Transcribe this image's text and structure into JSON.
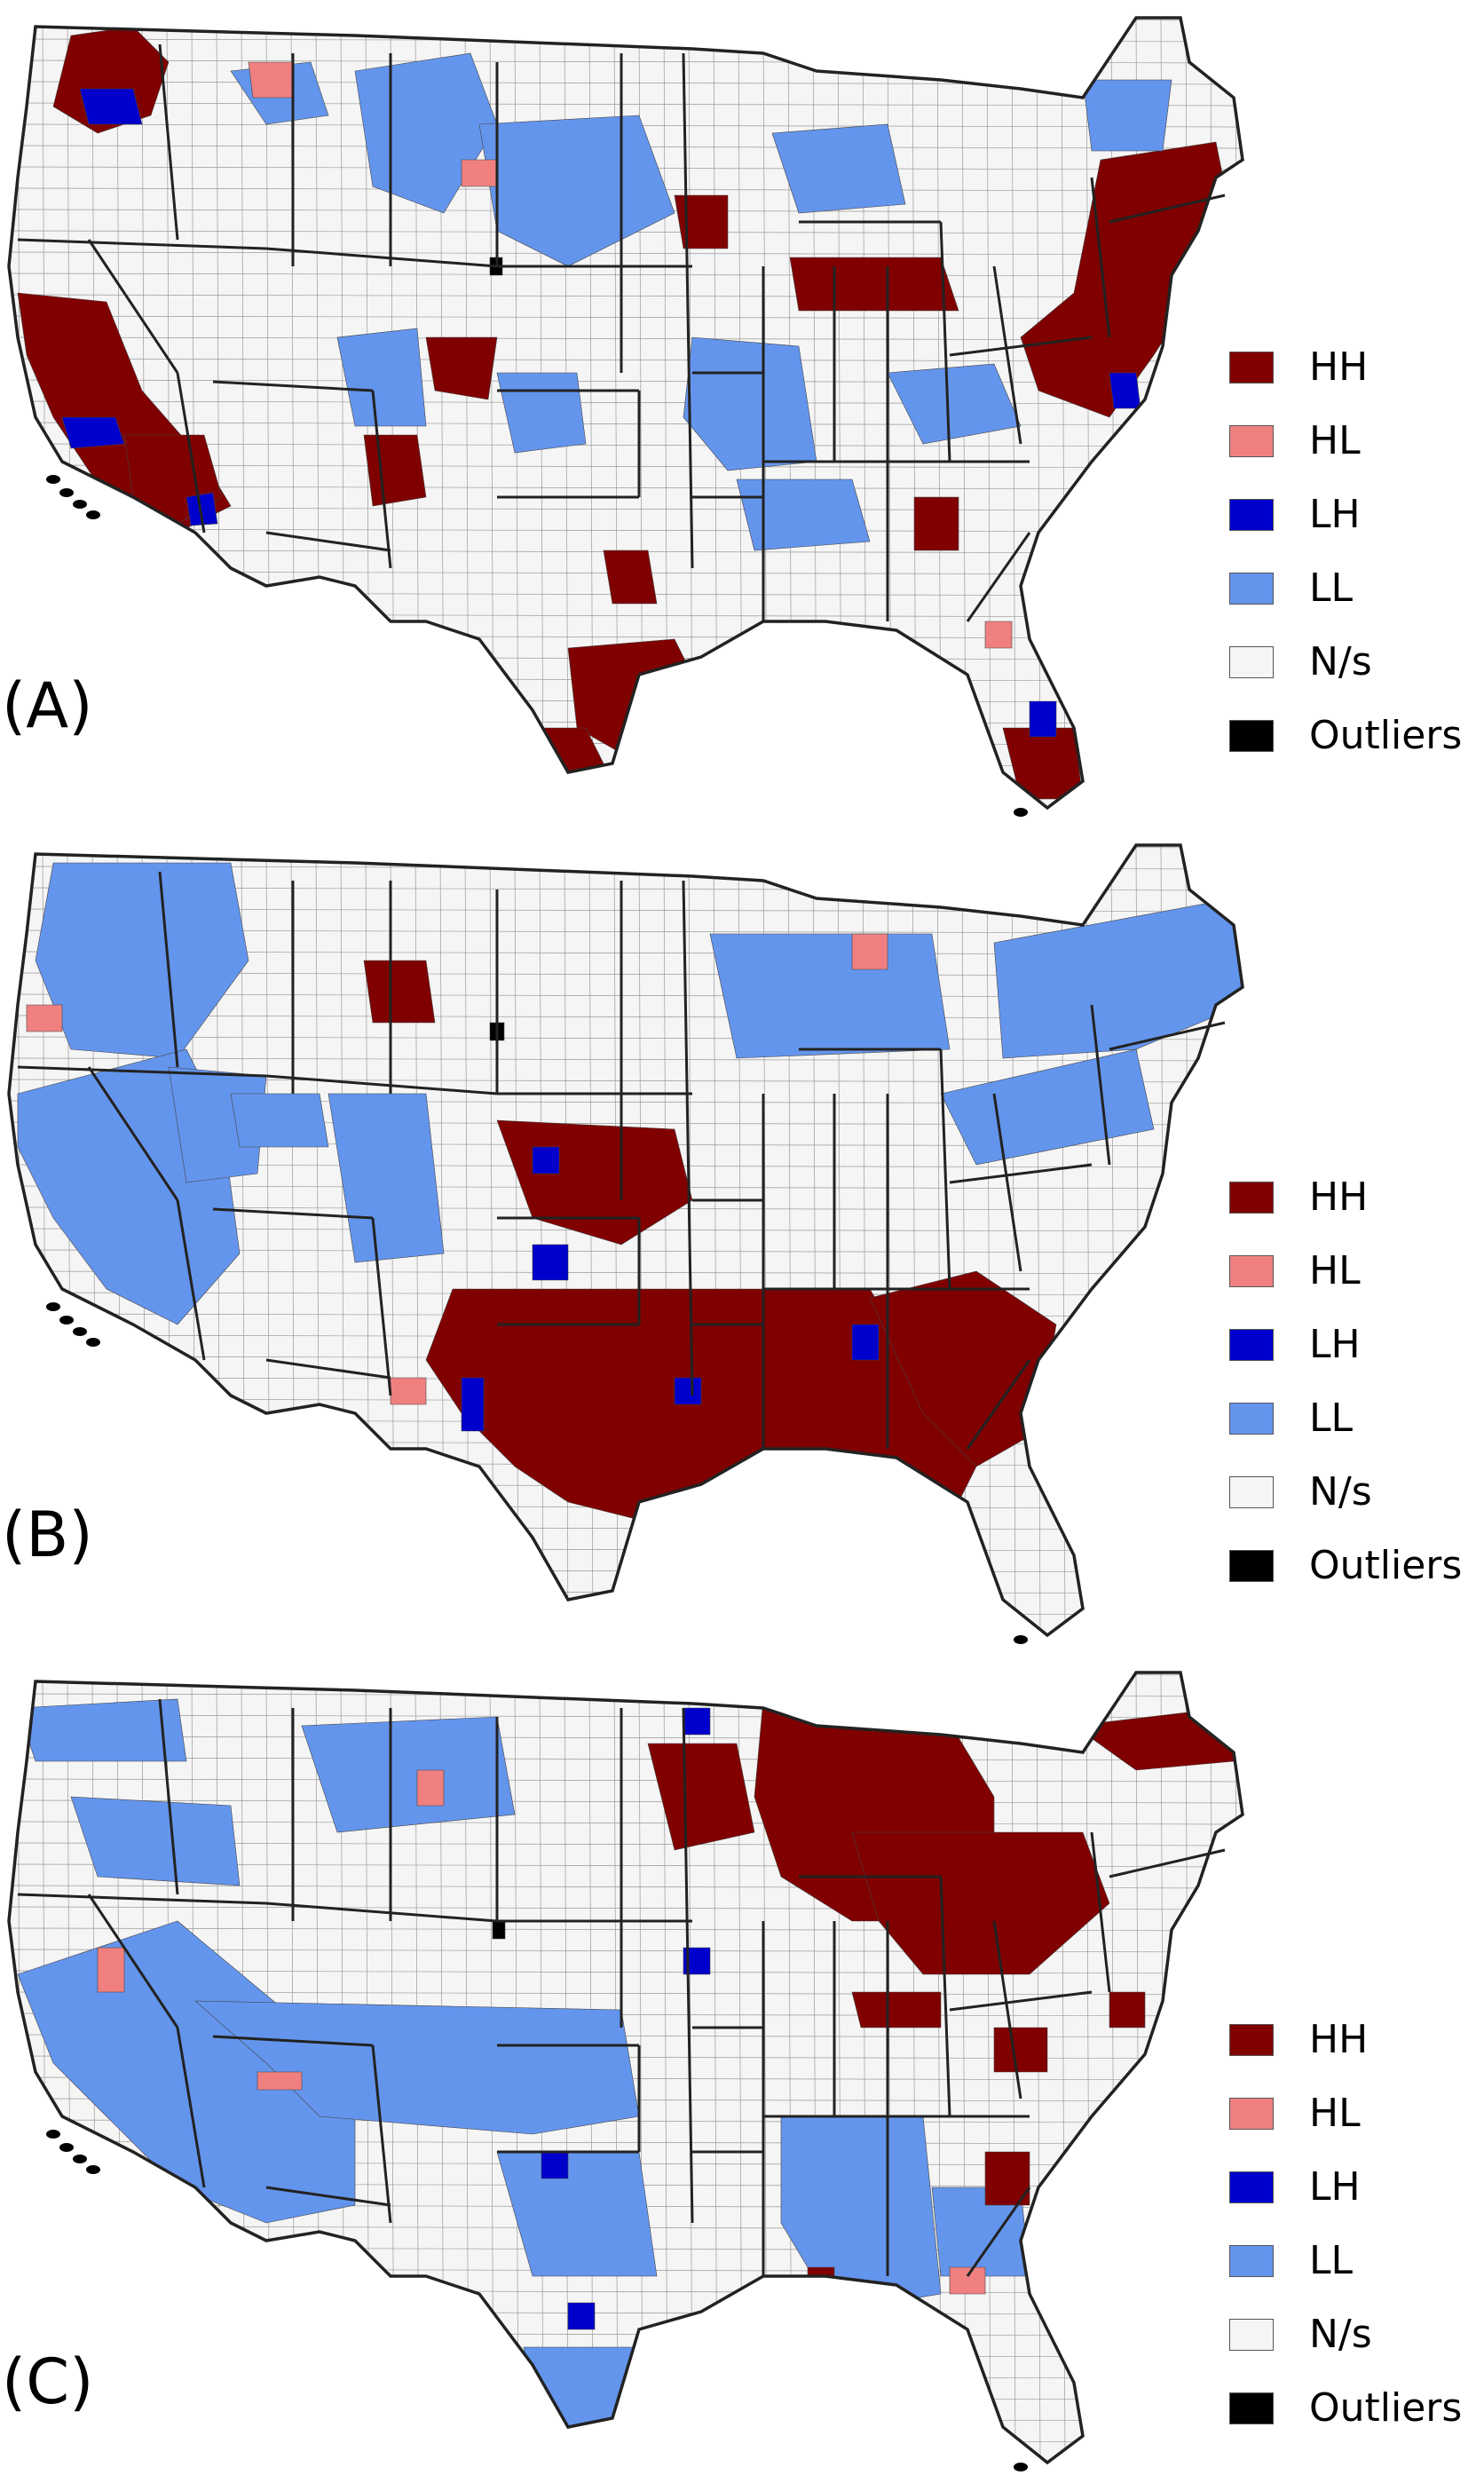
{
  "panels": [
    {
      "label": "(A)",
      "regions": [
        {
          "cls": "HH",
          "poly": "80,40 150,30 190,70 170,130 110,150 60,120"
        },
        {
          "cls": "LH",
          "poly": "90,100 150,100 160,140 100,140"
        },
        {
          "cls": "HH",
          "poly": "20,330 120,340 160,440 230,520 260,570 200,600 120,560 60,470 30,400"
        },
        {
          "cls": "LH",
          "poly": "70,470 130,470 140,500 80,505"
        },
        {
          "cls": "HH",
          "poly": "140,490 230,490 250,560 200,590 150,560"
        },
        {
          "cls": "LH",
          "poly": "210,560 240,555 245,590 215,592"
        },
        {
          "cls": "LL",
          "poly": "260,80 350,70 370,130 300,140"
        },
        {
          "cls": "LL",
          "poly": "400,80 530,60 560,140 500,240 420,210"
        },
        {
          "cls": "LL",
          "poly": "540,140 720,130 760,240 640,300 560,260"
        },
        {
          "cls": "LL",
          "poly": "380,380 470,370 480,480 400,480"
        },
        {
          "cls": "HH",
          "poly": "410,490 470,490 480,560 420,570"
        },
        {
          "cls": "HH",
          "poly": "480,380 560,380 550,450 490,440"
        },
        {
          "cls": "LL",
          "poly": "560,420 650,420 660,500 580,510"
        },
        {
          "cls": "HH",
          "poly": "680,620 730,620 740,680 690,680"
        },
        {
          "cls": "HH",
          "poly": "640,730 760,720 800,800 720,860 650,820"
        },
        {
          "cls": "HH",
          "poly": "600,820 660,820 690,880 640,880"
        },
        {
          "cls": "LL",
          "poly": "780,380 900,390 920,520 820,530 770,470"
        },
        {
          "cls": "LL",
          "poly": "870,150 1000,140 1020,230 900,240"
        },
        {
          "cls": "HH",
          "poly": "760,220 820,220 820,280 770,280"
        },
        {
          "cls": "HH",
          "poly": "890,290 1060,290 1080,350 900,350"
        },
        {
          "cls": "LL",
          "poly": "1000,420 1120,410 1150,480 1040,500"
        },
        {
          "cls": "LL",
          "poly": "830,540 960,540 980,610 850,620"
        },
        {
          "cls": "HH",
          "poly": "1030,560 1080,560 1080,620 1030,620"
        },
        {
          "cls": "HH",
          "poly": "1240,180 1370,160 1390,260 1300,400 1250,470 1170,440 1150,380 1210,330"
        },
        {
          "cls": "LH",
          "poly": "1250,420 1280,420 1285,460 1255,460"
        },
        {
          "cls": "LL",
          "poly": "1220,90 1320,90 1310,170 1230,170"
        },
        {
          "cls": "HH",
          "poly": "1130,820 1210,820 1220,900 1150,900"
        },
        {
          "cls": "LH",
          "poly": "1160,790 1190,790 1190,830 1160,830"
        },
        {
          "cls": "HL",
          "poly": "280,70 330,70 330,110 285,110"
        },
        {
          "cls": "HL",
          "poly": "520,180 560,180 560,210 520,210"
        },
        {
          "cls": "HL",
          "poly": "1110,700 1140,700 1140,730 1110,730"
        },
        {
          "cls": "OUT",
          "poly": "552,290 566,290 566,310 552,310"
        }
      ]
    },
    {
      "label": "(B)",
      "regions": [
        {
          "cls": "LL",
          "poly": "60,40 260,40 280,150 200,260 80,250 40,150"
        },
        {
          "cls": "LL",
          "poly": "20,300 210,250 250,330 270,480 200,560 120,520 60,440 20,360"
        },
        {
          "cls": "LL",
          "poly": "190,270 300,280 290,390 210,400"
        },
        {
          "cls": "LL",
          "poly": "370,300 480,300 500,480 400,490"
        },
        {
          "cls": "LL",
          "poly": "260,300 360,300 370,360 270,360"
        },
        {
          "cls": "HH",
          "poly": "410,150 480,150 490,220 420,220"
        },
        {
          "cls": "LL",
          "poly": "800,120 1050,120 1070,250 830,260"
        },
        {
          "cls": "LL",
          "poly": "1120,130 1390,80 1400,200 1280,250 1130,260"
        },
        {
          "cls": "LL",
          "poly": "1060,300 1280,250 1300,340 1100,380"
        },
        {
          "cls": "HH",
          "poly": "560,330 760,340 780,420 700,470 600,440"
        },
        {
          "cls": "HH",
          "poly": "510,520 980,520 1040,620 1100,720 1050,820 960,820 860,820 780,840 720,780 640,760 580,720 520,660 480,600"
        },
        {
          "cls": "HH",
          "poly": "980,530 1100,500 1190,560 1170,680 1100,720 1040,660"
        },
        {
          "cls": "LH",
          "poly": "600,470 640,470 640,510 600,510"
        },
        {
          "cls": "LH",
          "poly": "520,620 545,620 545,680 520,680"
        },
        {
          "cls": "LH",
          "poly": "680,880 710,880 710,910 680,910"
        },
        {
          "cls": "LH",
          "poly": "760,620 790,620 790,650 760,650"
        },
        {
          "cls": "LH",
          "poly": "960,560 990,560 990,600 960,600"
        },
        {
          "cls": "LH",
          "poly": "600,360 630,360 630,390 600,390"
        },
        {
          "cls": "HL",
          "poly": "440,620 480,620 480,650 440,650"
        },
        {
          "cls": "HL",
          "poly": "30,200 70,200 70,230 30,230"
        },
        {
          "cls": "HL",
          "poly": "960,120 1000,120 1000,160 960,160"
        },
        {
          "cls": "OUT",
          "poly": "552,220 568,220 568,240 552,240"
        }
      ]
    },
    {
      "label": "(C)",
      "regions": [
        {
          "cls": "LL",
          "poly": "20,360 200,300 320,400 400,520 400,620 300,640 200,600 120,520 60,460"
        },
        {
          "cls": "LL",
          "poly": "220,390 700,400 720,520 600,540 360,520 300,460"
        },
        {
          "cls": "LL",
          "poly": "80,160 260,170 270,260 110,250"
        },
        {
          "cls": "LL",
          "poly": "20,60 200,50 210,120 40,120"
        },
        {
          "cls": "LL",
          "poly": "340,80 560,70 580,180 380,200"
        },
        {
          "cls": "LL",
          "poly": "560,560 720,560 740,700 600,700"
        },
        {
          "cls": "LL",
          "poly": "590,780 720,780 740,880 610,880"
        },
        {
          "cls": "LL",
          "poly": "880,520 1040,520 1060,720 940,740 880,640"
        },
        {
          "cls": "LL",
          "poly": "1050,600 1150,600 1160,700 1060,700"
        },
        {
          "cls": "HH",
          "poly": "730,100 830,100 850,200 760,220"
        },
        {
          "cls": "HH",
          "poly": "860,50 1060,60 1120,160 1120,260 1060,300 960,300 880,250 850,160"
        },
        {
          "cls": "HH",
          "poly": "960,200 1220,200 1250,280 1160,360 1040,360 990,300"
        },
        {
          "cls": "HH",
          "poly": "960,380 1060,380 1060,420 970,420"
        },
        {
          "cls": "HH",
          "poly": "1210,80 1380,60 1390,120 1280,130"
        },
        {
          "cls": "HH",
          "poly": "1120,420 1180,420 1180,470 1120,470"
        },
        {
          "cls": "HH",
          "poly": "1250,380 1290,380 1290,420 1250,420"
        },
        {
          "cls": "HH",
          "poly": "1110,560 1160,560 1160,620 1110,620"
        },
        {
          "cls": "HH",
          "poly": "910,690 940,690 940,720 910,720"
        },
        {
          "cls": "LH",
          "poly": "770,60 800,60 800,90 770,90"
        },
        {
          "cls": "LH",
          "poly": "770,330 800,330 800,360 770,360"
        },
        {
          "cls": "LH",
          "poly": "610,560 640,560 640,590 610,590"
        },
        {
          "cls": "LH",
          "poly": "640,730 670,730 670,760 640,760"
        },
        {
          "cls": "HL",
          "poly": "110,330 140,330 140,380 110,380"
        },
        {
          "cls": "HL",
          "poly": "290,470 340,470 340,490 290,490"
        },
        {
          "cls": "HL",
          "poly": "470,130 500,130 500,170 470,170"
        },
        {
          "cls": "HL",
          "poly": "1070,690 1110,690 1110,720 1070,720"
        },
        {
          "cls": "OUT",
          "poly": "555,300 569,300 569,320 555,320"
        }
      ]
    }
  ],
  "legend": [
    {
      "key": "HH",
      "label": "HH",
      "color": "#800000"
    },
    {
      "key": "HL",
      "label": "HL",
      "color": "#f08080"
    },
    {
      "key": "LH",
      "label": "LH",
      "color": "#0000cc"
    },
    {
      "key": "LL",
      "label": "LL",
      "color": "#6495ed"
    },
    {
      "key": "NS",
      "label": "N/s",
      "color": "#f5f5f5"
    },
    {
      "key": "OUT",
      "label": "Outliers",
      "color": "#000000"
    }
  ],
  "colors": {
    "HH": "#800000",
    "HL": "#f08080",
    "LH": "#0000cc",
    "LL": "#6495ed",
    "NS": "#f5f5f5",
    "OUT": "#000000",
    "border": "#222222"
  }
}
